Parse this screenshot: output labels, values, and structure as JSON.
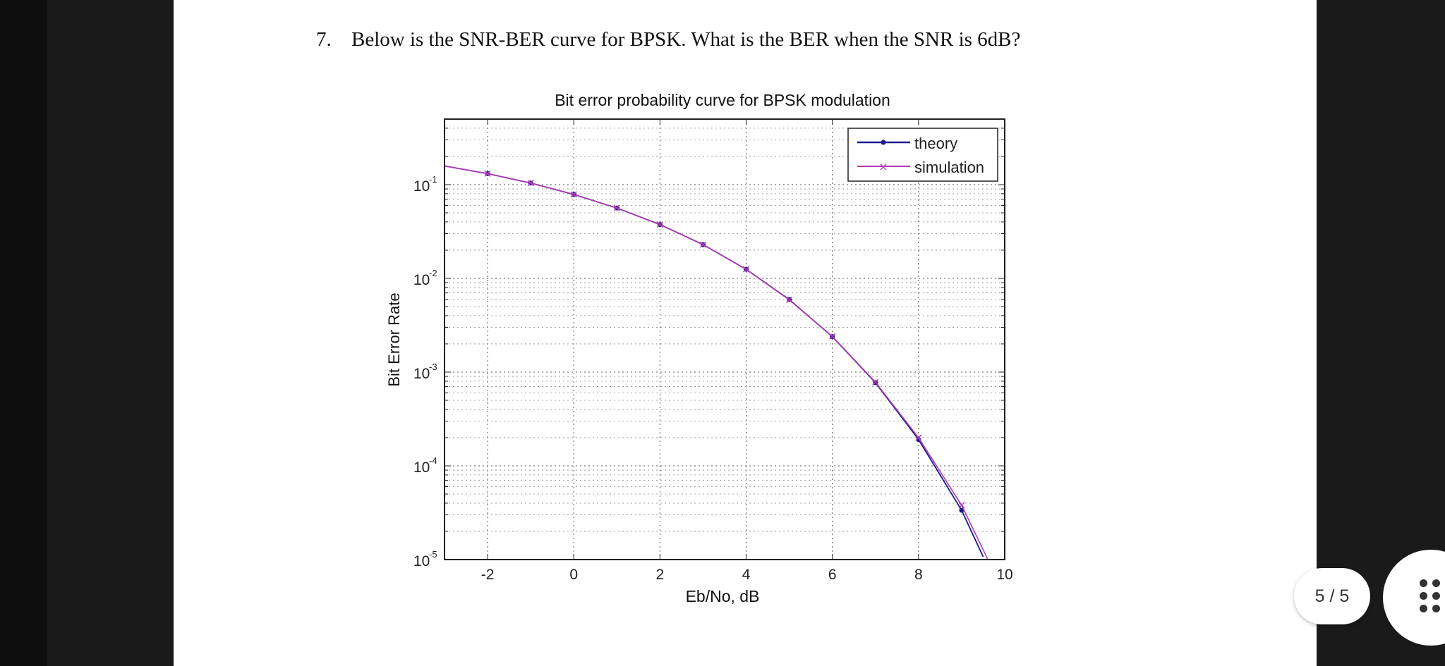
{
  "question": {
    "number": "7.",
    "text": "Below is the SNR-BER curve for BPSK. What is the BER when the SNR is 6dB?"
  },
  "page_counter": "5 / 5",
  "chart_data": {
    "type": "line",
    "title": "Bit error probability curve for BPSK modulation",
    "xlabel": "Eb/No, dB",
    "ylabel": "Bit Error Rate",
    "xlim": [
      -3,
      10
    ],
    "ylim": [
      1e-05,
      0.5
    ],
    "y_scale": "log",
    "x_ticks": [
      -2,
      0,
      2,
      4,
      6,
      8,
      10
    ],
    "x_tick_labels": [
      "-2",
      "0",
      "2",
      "4",
      "6",
      "8",
      "10"
    ],
    "y_ticks": [
      0.1,
      0.01,
      0.001,
      0.0001,
      1e-05
    ],
    "y_tick_labels": [
      {
        "base": "10",
        "exp": "-1"
      },
      {
        "base": "10",
        "exp": "-2"
      },
      {
        "base": "10",
        "exp": "-3"
      },
      {
        "base": "10",
        "exp": "-4"
      },
      {
        "base": "10",
        "exp": "-5"
      }
    ],
    "grid": true,
    "legend_position": "top-right",
    "series": [
      {
        "name": "theory",
        "color": "#1a1a8c",
        "marker": "dot",
        "x": [
          -3,
          -2,
          -1,
          0,
          1,
          2,
          3,
          4,
          5,
          6,
          7,
          8,
          9,
          9.5
        ],
        "y": [
          0.158,
          0.131,
          0.104,
          0.0786,
          0.0563,
          0.0375,
          0.0229,
          0.0125,
          0.00595,
          0.00239,
          0.000773,
          0.000191,
          3.36e-05,
          1.07e-05
        ]
      },
      {
        "name": "simulation",
        "color": "#b23ab2",
        "marker": "x",
        "x": [
          -3,
          -2,
          -1,
          0,
          1,
          2,
          3,
          4,
          5,
          6,
          7,
          8,
          9,
          9.6
        ],
        "y": [
          0.158,
          0.131,
          0.104,
          0.0786,
          0.0563,
          0.0375,
          0.0229,
          0.0125,
          0.0059,
          0.0024,
          0.00078,
          0.0002,
          3.8e-05,
          1.02e-05
        ]
      }
    ]
  }
}
